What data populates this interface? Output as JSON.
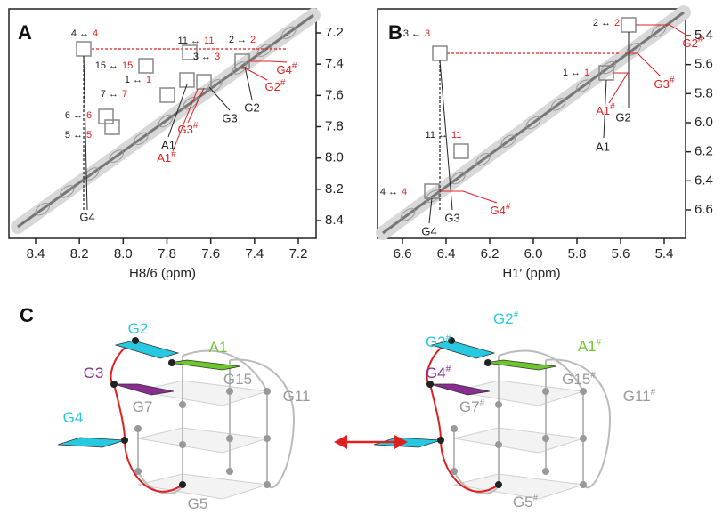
{
  "panels": {
    "A": {
      "label": "A",
      "x_axis_label": "H8/6 (ppm)",
      "xticks": [
        8.4,
        8.2,
        {
          "value": 8,
          "label": "8.0"
        },
        7.8,
        7.6,
        7.4,
        7.2
      ],
      "yticks": [
        7.2,
        7.4,
        7.6,
        7.8,
        {
          "value": 8,
          "label": "8.0"
        },
        8.2,
        8.4
      ],
      "peaks": [
        {
          "black": "4 ↔",
          "red": "4"
        },
        {
          "black": "11 ↔",
          "red": "11"
        },
        {
          "black": "2 ↔",
          "red": "2"
        },
        {
          "black": "15 ↔",
          "red": "15"
        },
        {
          "black": "3 ↔",
          "red": "3"
        },
        {
          "black": "1 ↔",
          "red": "1"
        },
        {
          "black": "7 ↔",
          "red": "7"
        },
        {
          "black": "6 ↔",
          "red": "6"
        },
        {
          "black": "5 ↔",
          "red": "5"
        }
      ],
      "assign_black": [
        "G2",
        "G3",
        "A1",
        "G4"
      ],
      "assign_red": [
        {
          "base": "G4",
          "sup": "#"
        },
        {
          "base": "G2",
          "sup": "#"
        },
        {
          "base": "G3",
          "sup": "#"
        },
        {
          "base": "A1",
          "sup": "#"
        }
      ]
    },
    "B": {
      "label": "B",
      "x_axis_label": "H1′ (ppm)",
      "xticks": [
        6.6,
        6.4,
        6.2,
        {
          "value": 6,
          "label": "6.0"
        },
        5.8,
        5.6,
        5.4
      ],
      "yticks": [
        5.4,
        5.6,
        5.8,
        {
          "value": 6,
          "label": "6.0"
        },
        6.2,
        6.4,
        6.6
      ],
      "peaks": [
        {
          "black": "2 ↔",
          "red": "2"
        },
        {
          "black": "3 ↔",
          "red": "3"
        },
        {
          "black": "1 ↔",
          "red": "1"
        },
        {
          "black": "11 ↔",
          "red": "11"
        },
        {
          "black": "4 ↔",
          "red": "4"
        }
      ],
      "assign_black": [
        "G2",
        "A1",
        "G3",
        "G4"
      ],
      "assign_red": [
        {
          "base": "G2",
          "sup": "#"
        },
        {
          "base": "G3",
          "sup": "#"
        },
        {
          "base": "A1",
          "sup": "#"
        },
        {
          "base": "G4",
          "sup": "#"
        }
      ]
    }
  },
  "C": {
    "label": "C",
    "left": [
      {
        "base": "G2",
        "sup": ""
      },
      {
        "base": "A1",
        "sup": ""
      },
      {
        "base": "G3",
        "sup": ""
      },
      {
        "base": "G15",
        "sup": ""
      },
      {
        "base": "G11",
        "sup": ""
      },
      {
        "base": "G7",
        "sup": ""
      },
      {
        "base": "G4",
        "sup": ""
      },
      {
        "base": "G5",
        "sup": ""
      }
    ],
    "right": [
      {
        "base": "G3",
        "sup": "#"
      },
      {
        "base": "G2",
        "sup": "#"
      },
      {
        "base": "A1",
        "sup": "#"
      },
      {
        "base": "G4",
        "sup": "#"
      },
      {
        "base": "G15",
        "sup": "#"
      },
      {
        "base": "G11",
        "sup": "#"
      },
      {
        "base": "G7",
        "sup": "#"
      },
      {
        "base": "G5",
        "sup": "#"
      }
    ]
  }
}
